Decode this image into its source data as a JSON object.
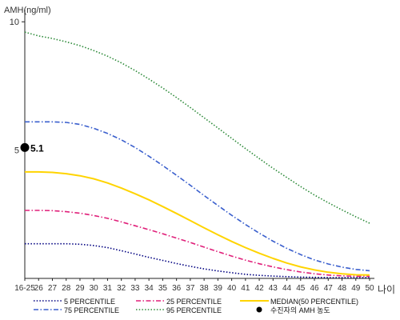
{
  "chart_data": {
    "type": "line",
    "title": "",
    "ylabel": "AMH(ng/ml)",
    "xlabel": "나이",
    "ylim": [
      0,
      10.6
    ],
    "yticks": [
      5,
      10
    ],
    "xticks": [
      "16-25",
      "26",
      "27",
      "28",
      "29",
      "30",
      "31",
      "32",
      "33",
      "34",
      "35",
      "36",
      "37",
      "38",
      "39",
      "40",
      "41",
      "42",
      "43",
      "44",
      "45",
      "46",
      "47",
      "48",
      "49",
      "50"
    ],
    "x": [
      "16-25",
      "26",
      "27",
      "28",
      "29",
      "30",
      "31",
      "32",
      "33",
      "34",
      "35",
      "36",
      "37",
      "38",
      "39",
      "40",
      "41",
      "42",
      "43",
      "44",
      "45",
      "46",
      "47",
      "48",
      "49",
      "50"
    ],
    "series": [
      {
        "name": "5 PERCENTILE",
        "color": "#000080",
        "dash": "dotted",
        "values": [
          1.35,
          1.35,
          1.35,
          1.35,
          1.33,
          1.28,
          1.2,
          1.08,
          0.95,
          0.82,
          0.7,
          0.58,
          0.47,
          0.37,
          0.29,
          0.22,
          0.16,
          0.12,
          0.09,
          0.07,
          0.05,
          0.04,
          0.03,
          0.03,
          0.03,
          0.03
        ]
      },
      {
        "name": "25 PERCENTILE",
        "color": "#e0207a",
        "dash": "dashdot",
        "values": [
          2.65,
          2.65,
          2.64,
          2.6,
          2.54,
          2.45,
          2.34,
          2.2,
          2.05,
          1.9,
          1.74,
          1.57,
          1.4,
          1.22,
          1.04,
          0.87,
          0.71,
          0.57,
          0.45,
          0.34,
          0.25,
          0.18,
          0.13,
          0.1,
          0.08,
          0.08
        ]
      },
      {
        "name": "MEDIAN(50 PERCENTILE)",
        "color": "#ffd400",
        "dash": "solid",
        "values": [
          4.15,
          4.15,
          4.13,
          4.08,
          4.0,
          3.88,
          3.72,
          3.52,
          3.3,
          3.06,
          2.8,
          2.53,
          2.25,
          1.97,
          1.7,
          1.44,
          1.2,
          0.98,
          0.78,
          0.6,
          0.45,
          0.33,
          0.24,
          0.18,
          0.14,
          0.13
        ]
      },
      {
        "name": "75 PERCENTILE",
        "color": "#3a5fcd",
        "dash": "dashdot",
        "values": [
          6.1,
          6.1,
          6.1,
          6.08,
          6.0,
          5.85,
          5.65,
          5.4,
          5.1,
          4.76,
          4.4,
          4.02,
          3.63,
          3.23,
          2.84,
          2.46,
          2.1,
          1.76,
          1.45,
          1.17,
          0.93,
          0.72,
          0.56,
          0.44,
          0.35,
          0.3
        ]
      },
      {
        "name": "95 PERCENTILE",
        "color": "#2e8b3a",
        "dash": "dotted",
        "values": [
          9.6,
          9.45,
          9.35,
          9.22,
          9.07,
          8.88,
          8.66,
          8.4,
          8.1,
          7.77,
          7.42,
          7.05,
          6.66,
          6.26,
          5.86,
          5.46,
          5.06,
          4.67,
          4.29,
          3.93,
          3.58,
          3.25,
          2.95,
          2.67,
          2.4,
          2.15
        ]
      }
    ],
    "point": {
      "name": "수진자의 AMH 농도",
      "x": "16-25",
      "value": 5.1,
      "label": "5.1",
      "color": "#000000"
    },
    "legend": {
      "placement": "bottom",
      "items": [
        {
          "name": "5 PERCENTILE",
          "color": "#000080",
          "dash": "dotted"
        },
        {
          "name": "25 PERCENTILE",
          "color": "#e0207a",
          "dash": "dashdot"
        },
        {
          "name": "MEDIAN(50 PERCENTILE)",
          "color": "#ffd400",
          "dash": "solid"
        },
        {
          "name": "75 PERCENTILE",
          "color": "#3a5fcd",
          "dash": "dashdot"
        },
        {
          "name": "95 PERCENTILE",
          "color": "#2e8b3a",
          "dash": "dotted"
        },
        {
          "name": "수진자의 AMH 농도",
          "color": "#000000",
          "dash": "marker"
        }
      ]
    },
    "grid": false
  }
}
